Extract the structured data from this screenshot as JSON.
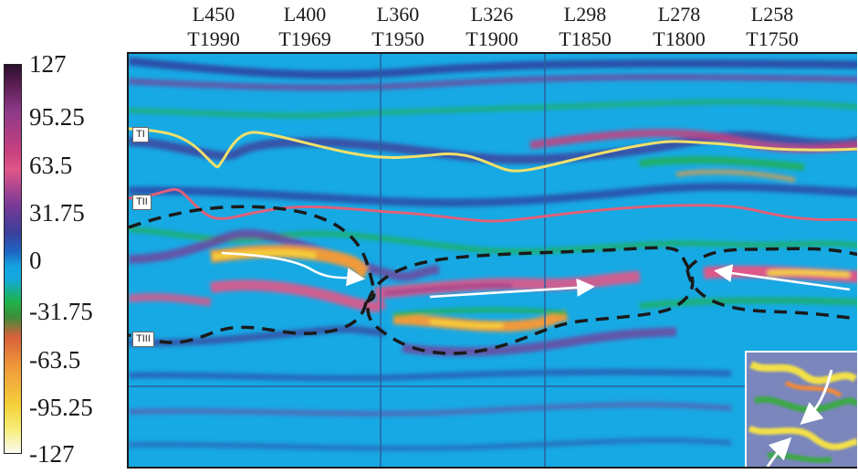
{
  "top_labels": [
    {
      "line": "L450",
      "trace": "T1990"
    },
    {
      "line": "L400",
      "trace": "T1969"
    },
    {
      "line": "L360",
      "trace": "T1950"
    },
    {
      "line": "L326",
      "trace": "T1900"
    },
    {
      "line": "L298",
      "trace": "T1850"
    },
    {
      "line": "L278",
      "trace": "T1800"
    },
    {
      "line": "L258",
      "trace": "T1750"
    }
  ],
  "colorbar": {
    "ticks": [
      "127",
      "95.25",
      "63.5",
      "31.75",
      "0",
      "-31.75",
      "-63.5",
      "-95.25",
      "-127"
    ],
    "max": 127,
    "min": -127
  },
  "horizons": [
    {
      "label": "TI",
      "color": "#f2e06a"
    },
    {
      "label": "TII",
      "color": "#e0607a"
    },
    {
      "label": "TIII",
      "color": "#222222"
    }
  ],
  "colors": {
    "background": "#17a9e4",
    "dashed_outline": "#1a1a1a",
    "arrow": "#ffffff"
  }
}
